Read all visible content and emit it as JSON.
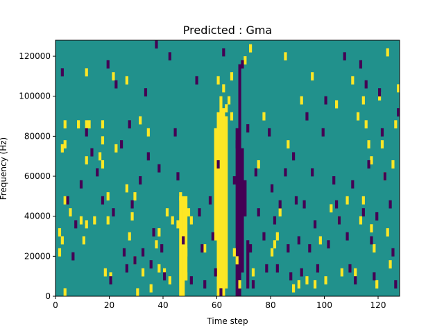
{
  "chart_data": {
    "type": "heatmap",
    "title": "Predicted : Gma",
    "xlabel": "Time step",
    "ylabel": "Frequency (Hz)",
    "xlim": [
      0,
      128
    ],
    "ylim": [
      0,
      128000
    ],
    "x_ticks": [
      0,
      20,
      40,
      60,
      80,
      100,
      120
    ],
    "y_ticks": [
      0,
      20000,
      40000,
      60000,
      80000,
      100000,
      120000
    ],
    "grid": false,
    "colormap": "viridis",
    "colors": {
      "background": "#21918c",
      "high": "#fde725",
      "low": "#440154"
    },
    "cell_size": {
      "time_steps": 1,
      "hz": 4000
    },
    "value_scale": {
      "low": -1,
      "mid": 0,
      "high": 1
    },
    "high_cells": [
      [
        1,
        30000
      ],
      [
        1,
        20000
      ],
      [
        2,
        26000
      ],
      [
        2,
        72000
      ],
      [
        3,
        84000
      ],
      [
        3,
        74000
      ],
      [
        3,
        46000
      ],
      [
        3,
        0
      ],
      [
        5,
        40000
      ],
      [
        8,
        84000
      ],
      [
        9,
        36000
      ],
      [
        10,
        26000
      ],
      [
        11,
        84000
      ],
      [
        11,
        66000
      ],
      [
        11,
        34000
      ],
      [
        11,
        110000
      ],
      [
        12,
        84000
      ],
      [
        14,
        36000
      ],
      [
        16,
        68000
      ],
      [
        17,
        84000
      ],
      [
        17,
        76000
      ],
      [
        17,
        64000
      ],
      [
        18,
        10000
      ],
      [
        19,
        48000
      ],
      [
        19,
        36000
      ],
      [
        20,
        8000
      ],
      [
        21,
        108000
      ],
      [
        22,
        72000
      ],
      [
        26,
        106000
      ],
      [
        26,
        52000
      ],
      [
        27,
        28000
      ],
      [
        28,
        38000
      ],
      [
        29,
        16000
      ],
      [
        29,
        48000
      ],
      [
        30,
        0
      ],
      [
        31,
        86000
      ],
      [
        32,
        10000
      ],
      [
        34,
        80000
      ],
      [
        35,
        2000
      ],
      [
        37,
        24000
      ],
      [
        38,
        12000
      ],
      [
        38,
        30000
      ],
      [
        40,
        10000
      ],
      [
        41,
        40000
      ],
      [
        42,
        6000
      ],
      [
        43,
        36000
      ],
      [
        45,
        34000
      ],
      [
        46,
        48000
      ],
      [
        47,
        44000
      ],
      [
        48,
        20000
      ],
      [
        48,
        8000
      ],
      [
        49,
        40000
      ],
      [
        50,
        36000
      ],
      [
        55,
        22000
      ],
      [
        60,
        106000
      ],
      [
        62,
        102000
      ],
      [
        63,
        92000
      ],
      [
        64,
        96000
      ],
      [
        65,
        108000
      ],
      [
        65,
        88000
      ],
      [
        66,
        20000
      ],
      [
        67,
        16000
      ],
      [
        68,
        4000
      ],
      [
        70,
        116000
      ],
      [
        72,
        122000
      ],
      [
        73,
        10000
      ],
      [
        75,
        64000
      ],
      [
        77,
        88000
      ],
      [
        80,
        20000
      ],
      [
        81,
        24000
      ],
      [
        82,
        28000
      ],
      [
        83,
        40000
      ],
      [
        85,
        118000
      ],
      [
        86,
        74000
      ],
      [
        88,
        2000
      ],
      [
        90,
        4000
      ],
      [
        91,
        96000
      ],
      [
        93,
        6000
      ],
      [
        95,
        108000
      ],
      [
        96,
        4000
      ],
      [
        98,
        26000
      ],
      [
        100,
        6000
      ],
      [
        102,
        42000
      ],
      [
        104,
        94000
      ],
      [
        105,
        36000
      ],
      [
        106,
        10000
      ],
      [
        108,
        46000
      ],
      [
        110,
        106000
      ],
      [
        111,
        10000
      ],
      [
        112,
        88000
      ],
      [
        113,
        36000
      ],
      [
        114,
        96000
      ],
      [
        114,
        46000
      ],
      [
        115,
        84000
      ],
      [
        116,
        74000
      ],
      [
        117,
        66000
      ],
      [
        117,
        32000
      ],
      [
        118,
        22000
      ],
      [
        119,
        4000
      ],
      [
        120,
        98000
      ],
      [
        121,
        74000
      ],
      [
        122,
        58000
      ],
      [
        123,
        30000
      ],
      [
        124,
        14000
      ],
      [
        125,
        64000
      ],
      [
        126,
        84000
      ],
      [
        127,
        102000
      ],
      [
        123,
        120000
      ]
    ],
    "high_bands": [
      [
        46,
        0,
        50000
      ],
      [
        47,
        0,
        50000
      ],
      [
        48,
        8000,
        50000
      ],
      [
        59,
        28000,
        84000
      ],
      [
        60,
        0,
        92000
      ],
      [
        61,
        0,
        100000
      ],
      [
        62,
        0,
        94000
      ],
      [
        63,
        4000,
        90000
      ]
    ],
    "low_cells": [
      [
        2,
        110000
      ],
      [
        4,
        46000
      ],
      [
        6,
        18000
      ],
      [
        7,
        34000
      ],
      [
        9,
        54000
      ],
      [
        11,
        80000
      ],
      [
        13,
        70000
      ],
      [
        15,
        60000
      ],
      [
        17,
        46000
      ],
      [
        19,
        114000
      ],
      [
        20,
        6000
      ],
      [
        21,
        40000
      ],
      [
        22,
        104000
      ],
      [
        24,
        74000
      ],
      [
        25,
        20000
      ],
      [
        26,
        12000
      ],
      [
        27,
        84000
      ],
      [
        28,
        44000
      ],
      [
        29,
        16000
      ],
      [
        30,
        128000
      ],
      [
        31,
        56000
      ],
      [
        32,
        20000
      ],
      [
        33,
        100000
      ],
      [
        34,
        68000
      ],
      [
        35,
        14000
      ],
      [
        36,
        30000
      ],
      [
        37,
        124000
      ],
      [
        38,
        62000
      ],
      [
        39,
        22000
      ],
      [
        40,
        8000
      ],
      [
        42,
        118000
      ],
      [
        44,
        80000
      ],
      [
        45,
        58000
      ],
      [
        47,
        26000
      ],
      [
        50,
        6000
      ],
      [
        52,
        106000
      ],
      [
        53,
        40000
      ],
      [
        54,
        22000
      ],
      [
        55,
        4000
      ],
      [
        57,
        46000
      ],
      [
        58,
        28000
      ],
      [
        59,
        10000
      ],
      [
        60,
        64000
      ],
      [
        61,
        0
      ],
      [
        62,
        120000
      ],
      [
        66,
        56000
      ],
      [
        67,
        74000
      ],
      [
        68,
        34000
      ],
      [
        69,
        114000
      ],
      [
        71,
        82000
      ],
      [
        72,
        22000
      ],
      [
        73,
        4000
      ],
      [
        74,
        60000
      ],
      [
        75,
        40000
      ],
      [
        77,
        28000
      ],
      [
        78,
        12000
      ],
      [
        79,
        80000
      ],
      [
        80,
        52000
      ],
      [
        81,
        36000
      ],
      [
        82,
        12000
      ],
      [
        83,
        44000
      ],
      [
        85,
        60000
      ],
      [
        86,
        22000
      ],
      [
        87,
        8000
      ],
      [
        88,
        68000
      ],
      [
        89,
        46000
      ],
      [
        90,
        26000
      ],
      [
        91,
        10000
      ],
      [
        92,
        44000
      ],
      [
        93,
        88000
      ],
      [
        94,
        22000
      ],
      [
        95,
        60000
      ],
      [
        96,
        34000
      ],
      [
        97,
        12000
      ],
      [
        99,
        80000
      ],
      [
        100,
        96000
      ],
      [
        101,
        24000
      ],
      [
        103,
        56000
      ],
      [
        104,
        44000
      ],
      [
        105,
        36000
      ],
      [
        107,
        118000
      ],
      [
        108,
        28000
      ],
      [
        109,
        12000
      ],
      [
        110,
        54000
      ],
      [
        111,
        6000
      ],
      [
        113,
        114000
      ],
      [
        114,
        40000
      ],
      [
        115,
        104000
      ],
      [
        116,
        64000
      ],
      [
        117,
        26000
      ],
      [
        118,
        8000
      ],
      [
        119,
        38000
      ],
      [
        120,
        100000
      ],
      [
        121,
        80000
      ],
      [
        122,
        58000
      ],
      [
        124,
        44000
      ],
      [
        125,
        20000
      ],
      [
        126,
        4000
      ],
      [
        127,
        90000
      ],
      [
        128,
        124000
      ]
    ],
    "low_bands": [
      [
        67,
        0,
        84000
      ],
      [
        68,
        0,
        116000
      ],
      [
        69,
        12000,
        74000
      ],
      [
        70,
        40000,
        58000
      ],
      [
        71,
        4000,
        28000
      ]
    ]
  }
}
